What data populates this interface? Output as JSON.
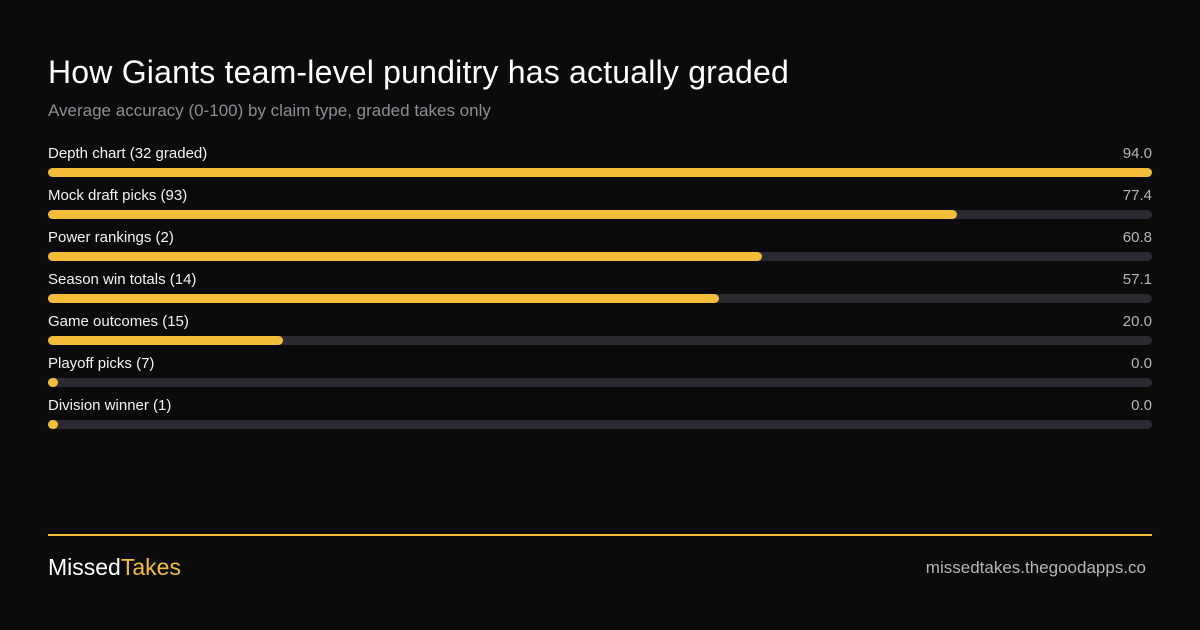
{
  "header": {
    "title": "How Giants team-level punditry has actually graded",
    "subtitle": "Average accuracy (0-100) by claim type, graded takes only"
  },
  "colors": {
    "background": "#0b0b0b",
    "bar_fill": "#f3bd38",
    "bar_track": "#2b2a30",
    "accent": "#f3bd38"
  },
  "chart_data": {
    "type": "bar",
    "orientation": "horizontal",
    "title": "How Giants team-level punditry has actually graded",
    "subtitle": "Average accuracy (0-100) by claim type, graded takes only",
    "xlim": [
      0,
      94
    ],
    "grid": false,
    "categories": [
      "Depth chart (32 graded)",
      "Mock draft picks (93)",
      "Power rankings (2)",
      "Season win totals (14)",
      "Game outcomes (15)",
      "Playoff picks (7)",
      "Division winner (1)"
    ],
    "values": [
      94.0,
      77.4,
      60.8,
      57.1,
      20.0,
      0.0,
      0.0
    ],
    "value_labels": [
      "94.0",
      "77.4",
      "60.8",
      "57.1",
      "20.0",
      "0.0",
      "0.0"
    ]
  },
  "footer": {
    "brand_part1": "Missed",
    "brand_part2": "Takes",
    "site": "missedtakes.thegoodapps.co"
  }
}
